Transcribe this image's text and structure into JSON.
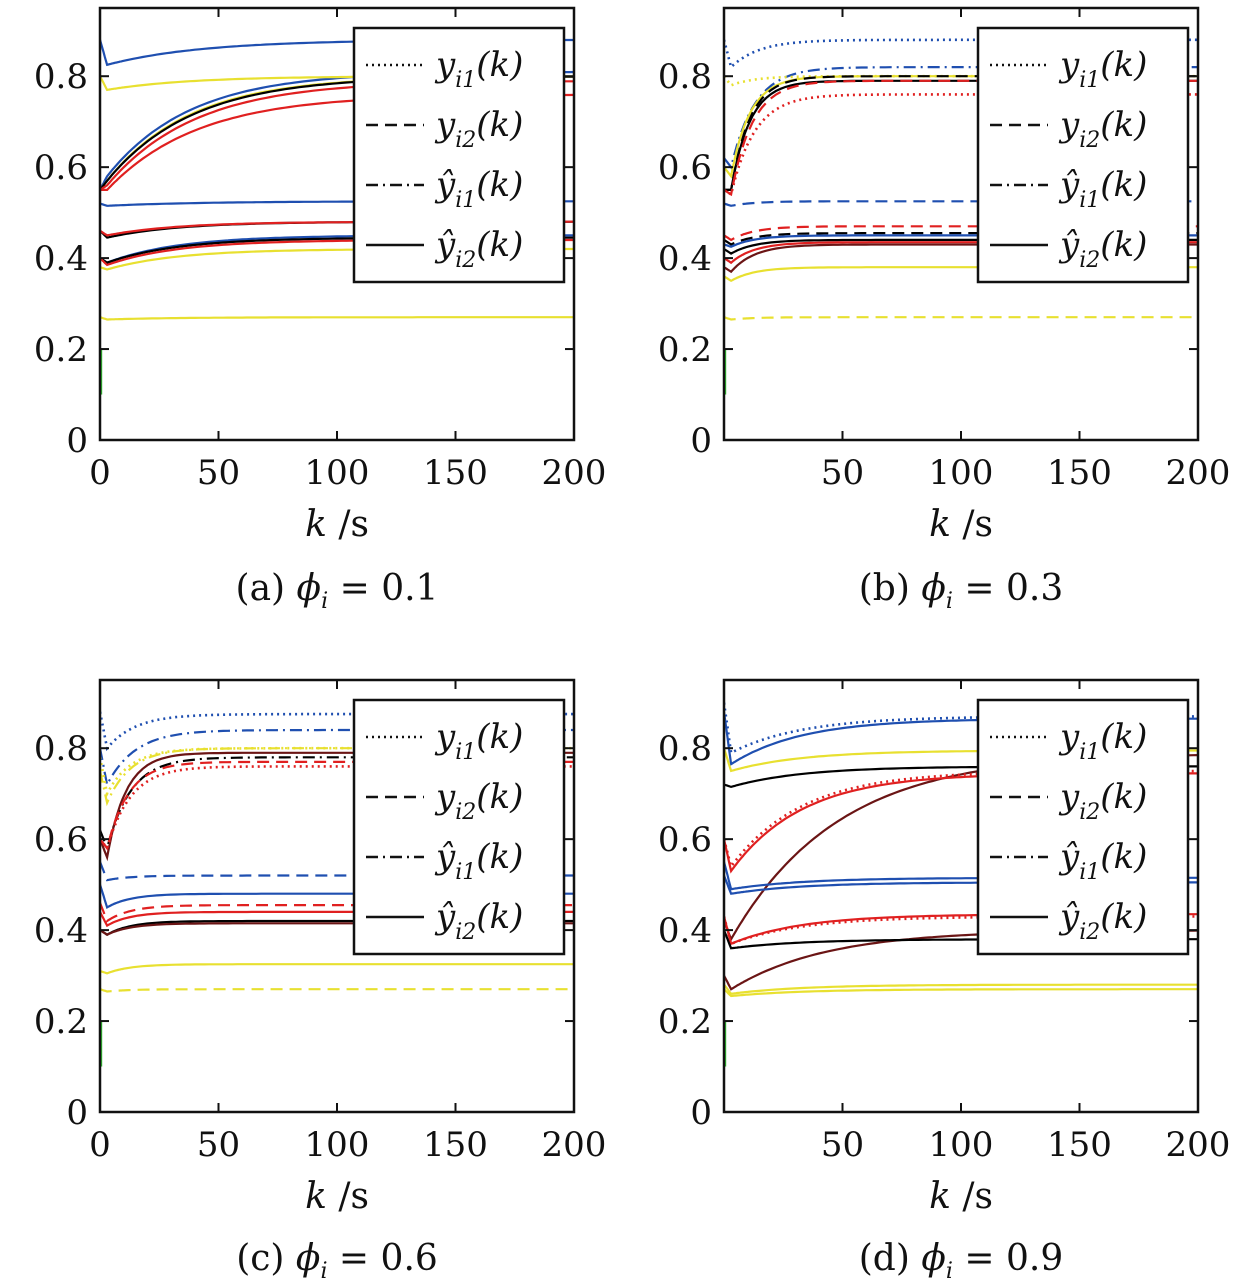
{
  "colors": {
    "blue": "#1f4fb0",
    "yellow": "#e8e030",
    "red": "#e02020",
    "black": "#000000",
    "brown": "#6b1515",
    "green": "#30c030",
    "purple": "#7040a0"
  },
  "chart_data": [
    {
      "type": "line",
      "caption": "(a) ϕi = 0.1",
      "caption_symbol": "ϕ",
      "caption_sub": "i",
      "caption_rest": " = 0.1",
      "caption_prefix": "(a) ",
      "xlabel": "k /s",
      "xlim": [
        0,
        200
      ],
      "ylim": [
        0,
        0.95
      ],
      "xticks": [
        0,
        50,
        100,
        150,
        200
      ],
      "xtick_labels": [
        "0",
        "50",
        "100",
        "150",
        "200"
      ],
      "yticks": [
        0,
        0.2,
        0.4,
        0.6,
        0.8
      ],
      "ytick_labels": [
        "0",
        "0.2",
        "0.4",
        "0.6",
        "0.8"
      ],
      "legend": {
        "placement": "top-right",
        "entries": [
          {
            "label": "y",
            "sub": "i1",
            "arg": "(k)",
            "hat": false,
            "style": "dotted"
          },
          {
            "label": "y",
            "sub": "i2",
            "arg": "(k)",
            "hat": false,
            "style": "dashed"
          },
          {
            "label": "ŷ",
            "sub": "i1",
            "arg": "(k)",
            "hat": true,
            "style": "dashdot"
          },
          {
            "label": "ŷ",
            "sub": "i2",
            "arg": "(k)",
            "hat": true,
            "style": "solid"
          }
        ]
      },
      "series": [
        {
          "color": "blue",
          "style": "solid",
          "start": 0.88,
          "dip": 0.825,
          "final": 0.88,
          "tau": 40
        },
        {
          "color": "blue",
          "style": "solid",
          "start": 0.55,
          "dip": 0.58,
          "final": 0.81,
          "tau": 35
        },
        {
          "color": "yellow",
          "style": "solid",
          "start": 0.8,
          "dip": 0.77,
          "final": 0.8,
          "tau": 35
        },
        {
          "color": "yellow",
          "style": "solid",
          "start": 0.55,
          "dip": 0.57,
          "final": 0.8,
          "tau": 35
        },
        {
          "color": "black",
          "style": "solid",
          "start": 0.55,
          "dip": 0.57,
          "final": 0.8,
          "tau": 36
        },
        {
          "color": "red",
          "style": "solid",
          "start": 0.55,
          "dip": 0.56,
          "final": 0.79,
          "tau": 37
        },
        {
          "color": "red",
          "style": "solid",
          "start": 0.55,
          "dip": 0.55,
          "final": 0.76,
          "tau": 38
        },
        {
          "color": "blue",
          "style": "solid",
          "start": 0.52,
          "dip": 0.515,
          "final": 0.525,
          "tau": 40
        },
        {
          "color": "black",
          "style": "solid",
          "start": 0.46,
          "dip": 0.445,
          "final": 0.48,
          "tau": 30
        },
        {
          "color": "red",
          "style": "solid",
          "start": 0.46,
          "dip": 0.45,
          "final": 0.48,
          "tau": 30
        },
        {
          "color": "blue",
          "style": "solid",
          "start": 0.4,
          "dip": 0.39,
          "final": 0.45,
          "tau": 30
        },
        {
          "color": "black",
          "style": "solid",
          "start": 0.4,
          "dip": 0.39,
          "final": 0.445,
          "tau": 30
        },
        {
          "color": "red",
          "style": "solid",
          "start": 0.4,
          "dip": 0.385,
          "final": 0.44,
          "tau": 30
        },
        {
          "color": "yellow",
          "style": "solid",
          "start": 0.38,
          "dip": 0.375,
          "final": 0.42,
          "tau": 30
        },
        {
          "color": "yellow",
          "style": "solid",
          "start": 0.27,
          "dip": 0.265,
          "final": 0.27,
          "tau": 30
        }
      ]
    },
    {
      "type": "line",
      "caption": "(b) ϕi = 0.3",
      "caption_symbol": "ϕ",
      "caption_sub": "i",
      "caption_rest": " = 0.3",
      "caption_prefix": "(b) ",
      "xlabel": "k /s",
      "xlim": [
        0,
        200
      ],
      "ylim": [
        0,
        0.95
      ],
      "xticks": [
        50,
        100,
        150,
        200
      ],
      "xtick_labels": [
        "50",
        "100",
        "150",
        "200"
      ],
      "yticks": [
        0,
        0.2,
        0.4,
        0.6,
        0.8
      ],
      "ytick_labels": [
        "0",
        "0.2",
        "0.4",
        "0.6",
        "0.8"
      ],
      "legend": {
        "placement": "top-right",
        "entries": [
          {
            "label": "y",
            "sub": "i1",
            "arg": "(k)",
            "hat": false,
            "style": "dotted"
          },
          {
            "label": "y",
            "sub": "i2",
            "arg": "(k)",
            "hat": false,
            "style": "dashed"
          },
          {
            "label": "ŷ",
            "sub": "i1",
            "arg": "(k)",
            "hat": true,
            "style": "dashdot"
          },
          {
            "label": "ŷ",
            "sub": "i2",
            "arg": "(k)",
            "hat": true,
            "style": "solid"
          }
        ]
      },
      "series": [
        {
          "color": "blue",
          "style": "dotted",
          "start": 0.88,
          "dip": 0.82,
          "final": 0.88,
          "tau": 12
        },
        {
          "color": "blue",
          "style": "dashdot",
          "start": 0.62,
          "dip": 0.6,
          "final": 0.82,
          "tau": 10
        },
        {
          "color": "yellow",
          "style": "dotted",
          "start": 0.8,
          "dip": 0.78,
          "final": 0.8,
          "tau": 10
        },
        {
          "color": "yellow",
          "style": "solid",
          "start": 0.6,
          "dip": 0.58,
          "final": 0.8,
          "tau": 8
        },
        {
          "color": "black",
          "style": "solid",
          "start": 0.55,
          "dip": 0.55,
          "final": 0.79,
          "tau": 8
        },
        {
          "color": "black",
          "style": "dashed",
          "start": 0.55,
          "dip": 0.55,
          "final": 0.8,
          "tau": 8
        },
        {
          "color": "red",
          "style": "dashed",
          "start": 0.55,
          "dip": 0.54,
          "final": 0.79,
          "tau": 9
        },
        {
          "color": "red",
          "style": "dotted",
          "start": 0.55,
          "dip": 0.54,
          "final": 0.76,
          "tau": 10
        },
        {
          "color": "blue",
          "style": "dashed",
          "start": 0.52,
          "dip": 0.515,
          "final": 0.525,
          "tau": 10
        },
        {
          "color": "red",
          "style": "dashed",
          "start": 0.45,
          "dip": 0.44,
          "final": 0.47,
          "tau": 10
        },
        {
          "color": "black",
          "style": "dashed",
          "start": 0.44,
          "dip": 0.43,
          "final": 0.455,
          "tau": 10
        },
        {
          "color": "blue",
          "style": "solid",
          "start": 0.43,
          "dip": 0.425,
          "final": 0.45,
          "tau": 10
        },
        {
          "color": "black",
          "style": "solid",
          "start": 0.42,
          "dip": 0.41,
          "final": 0.44,
          "tau": 10
        },
        {
          "color": "red",
          "style": "solid",
          "start": 0.4,
          "dip": 0.39,
          "final": 0.435,
          "tau": 10
        },
        {
          "color": "brown",
          "style": "solid",
          "start": 0.38,
          "dip": 0.37,
          "final": 0.43,
          "tau": 10
        },
        {
          "color": "yellow",
          "style": "solid",
          "start": 0.36,
          "dip": 0.35,
          "final": 0.38,
          "tau": 10
        },
        {
          "color": "yellow",
          "style": "dashed",
          "start": 0.27,
          "dip": 0.265,
          "final": 0.27,
          "tau": 10
        }
      ]
    },
    {
      "type": "line",
      "caption": "(c) ϕi = 0.6",
      "caption_symbol": "ϕ",
      "caption_sub": "i",
      "caption_rest": " = 0.6",
      "caption_prefix": "(c) ",
      "xlabel": "k /s",
      "xlim": [
        0,
        200
      ],
      "ylim": [
        0,
        0.95
      ],
      "xticks": [
        0,
        50,
        100,
        150,
        200
      ],
      "xtick_labels": [
        "0",
        "50",
        "100",
        "150",
        "200"
      ],
      "yticks": [
        0,
        0.2,
        0.4,
        0.6,
        0.8
      ],
      "ytick_labels": [
        "0",
        "0.2",
        "0.4",
        "0.6",
        "0.8"
      ],
      "legend": {
        "placement": "top-right",
        "entries": [
          {
            "label": "y",
            "sub": "i1",
            "arg": "(k)",
            "hat": false,
            "style": "dotted"
          },
          {
            "label": "y",
            "sub": "i2",
            "arg": "(k)",
            "hat": false,
            "style": "dashed"
          },
          {
            "label": "ŷ",
            "sub": "i1",
            "arg": "(k)",
            "hat": true,
            "style": "dashdot"
          },
          {
            "label": "ŷ",
            "sub": "i2",
            "arg": "(k)",
            "hat": true,
            "style": "solid"
          }
        ]
      },
      "series": [
        {
          "color": "blue",
          "style": "dotted",
          "start": 0.88,
          "dip": 0.8,
          "final": 0.875,
          "tau": 12
        },
        {
          "color": "blue",
          "style": "dashdot",
          "start": 0.8,
          "dip": 0.72,
          "final": 0.84,
          "tau": 12
        },
        {
          "color": "yellow",
          "style": "dotted",
          "start": 0.78,
          "dip": 0.7,
          "final": 0.8,
          "tau": 10
        },
        {
          "color": "yellow",
          "style": "dashdot",
          "start": 0.75,
          "dip": 0.68,
          "final": 0.8,
          "tau": 10
        },
        {
          "color": "black",
          "style": "dashdot",
          "start": 0.62,
          "dip": 0.58,
          "final": 0.78,
          "tau": 10
        },
        {
          "color": "brown",
          "style": "solid",
          "start": 0.6,
          "dip": 0.56,
          "final": 0.79,
          "tau": 8
        },
        {
          "color": "red",
          "style": "dashed",
          "start": 0.6,
          "dip": 0.58,
          "final": 0.77,
          "tau": 9
        },
        {
          "color": "red",
          "style": "dotted",
          "start": 0.6,
          "dip": 0.58,
          "final": 0.76,
          "tau": 10
        },
        {
          "color": "blue",
          "style": "dashed",
          "start": 0.55,
          "dip": 0.51,
          "final": 0.52,
          "tau": 10
        },
        {
          "color": "blue",
          "style": "solid",
          "start": 0.5,
          "dip": 0.45,
          "final": 0.48,
          "tau": 10
        },
        {
          "color": "red",
          "style": "dashed",
          "start": 0.46,
          "dip": 0.42,
          "final": 0.455,
          "tau": 10
        },
        {
          "color": "red",
          "style": "solid",
          "start": 0.44,
          "dip": 0.41,
          "final": 0.44,
          "tau": 10
        },
        {
          "color": "black",
          "style": "solid",
          "start": 0.4,
          "dip": 0.39,
          "final": 0.42,
          "tau": 10
        },
        {
          "color": "brown",
          "style": "solid",
          "start": 0.4,
          "dip": 0.39,
          "final": 0.415,
          "tau": 10
        },
        {
          "color": "yellow",
          "style": "solid",
          "start": 0.31,
          "dip": 0.305,
          "final": 0.325,
          "tau": 10
        },
        {
          "color": "yellow",
          "style": "dashed",
          "start": 0.27,
          "dip": 0.265,
          "final": 0.27,
          "tau": 10
        }
      ]
    },
    {
      "type": "line",
      "caption": "(d) ϕi = 0.9",
      "caption_symbol": "ϕ",
      "caption_sub": "i",
      "caption_rest": " = 0.9",
      "caption_prefix": "(d) ",
      "xlabel": "k /s",
      "xlim": [
        0,
        200
      ],
      "ylim": [
        0,
        0.95
      ],
      "xticks": [
        50,
        100,
        150,
        200
      ],
      "xtick_labels": [
        "50",
        "100",
        "150",
        "200"
      ],
      "yticks": [
        0,
        0.2,
        0.4,
        0.6,
        0.8
      ],
      "ytick_labels": [
        "0",
        "0.2",
        "0.4",
        "0.6",
        "0.8"
      ],
      "legend": {
        "placement": "top-right",
        "entries": [
          {
            "label": "y",
            "sub": "i1",
            "arg": "(k)",
            "hat": false,
            "style": "dotted"
          },
          {
            "label": "y",
            "sub": "i2",
            "arg": "(k)",
            "hat": false,
            "style": "dashed"
          },
          {
            "label": "ŷ",
            "sub": "i1",
            "arg": "(k)",
            "hat": true,
            "style": "dashdot"
          },
          {
            "label": "ŷ",
            "sub": "i2",
            "arg": "(k)",
            "hat": true,
            "style": "solid"
          }
        ]
      },
      "series": [
        {
          "color": "blue",
          "style": "dotted",
          "start": 0.9,
          "dip": 0.79,
          "final": 0.87,
          "tau": 30
        },
        {
          "color": "blue",
          "style": "solid",
          "start": 0.88,
          "dip": 0.765,
          "final": 0.865,
          "tau": 30
        },
        {
          "color": "yellow",
          "style": "solid",
          "start": 0.8,
          "dip": 0.75,
          "final": 0.795,
          "tau": 30
        },
        {
          "color": "brown",
          "style": "solid",
          "start": 0.42,
          "dip": 0.38,
          "final": 0.79,
          "tau": 45
        },
        {
          "color": "black",
          "style": "solid",
          "start": 0.72,
          "dip": 0.715,
          "final": 0.76,
          "tau": 30
        },
        {
          "color": "red",
          "style": "dotted",
          "start": 0.6,
          "dip": 0.54,
          "final": 0.75,
          "tau": 30
        },
        {
          "color": "red",
          "style": "solid",
          "start": 0.6,
          "dip": 0.53,
          "final": 0.745,
          "tau": 30
        },
        {
          "color": "blue",
          "style": "solid",
          "start": 0.55,
          "dip": 0.49,
          "final": 0.515,
          "tau": 30
        },
        {
          "color": "blue",
          "style": "solid",
          "start": 0.52,
          "dip": 0.48,
          "final": 0.505,
          "tau": 30
        },
        {
          "color": "red",
          "style": "solid",
          "start": 0.43,
          "dip": 0.37,
          "final": 0.435,
          "tau": 30
        },
        {
          "color": "red",
          "style": "dotted",
          "start": 0.43,
          "dip": 0.37,
          "final": 0.43,
          "tau": 30
        },
        {
          "color": "brown",
          "style": "solid",
          "start": 0.3,
          "dip": 0.27,
          "final": 0.4,
          "tau": 40
        },
        {
          "color": "black",
          "style": "solid",
          "start": 0.4,
          "dip": 0.36,
          "final": 0.38,
          "tau": 30
        },
        {
          "color": "yellow",
          "style": "solid",
          "start": 0.28,
          "dip": 0.26,
          "final": 0.28,
          "tau": 30
        },
        {
          "color": "yellow",
          "style": "solid",
          "start": 0.27,
          "dip": 0.255,
          "final": 0.27,
          "tau": 30
        }
      ]
    }
  ]
}
